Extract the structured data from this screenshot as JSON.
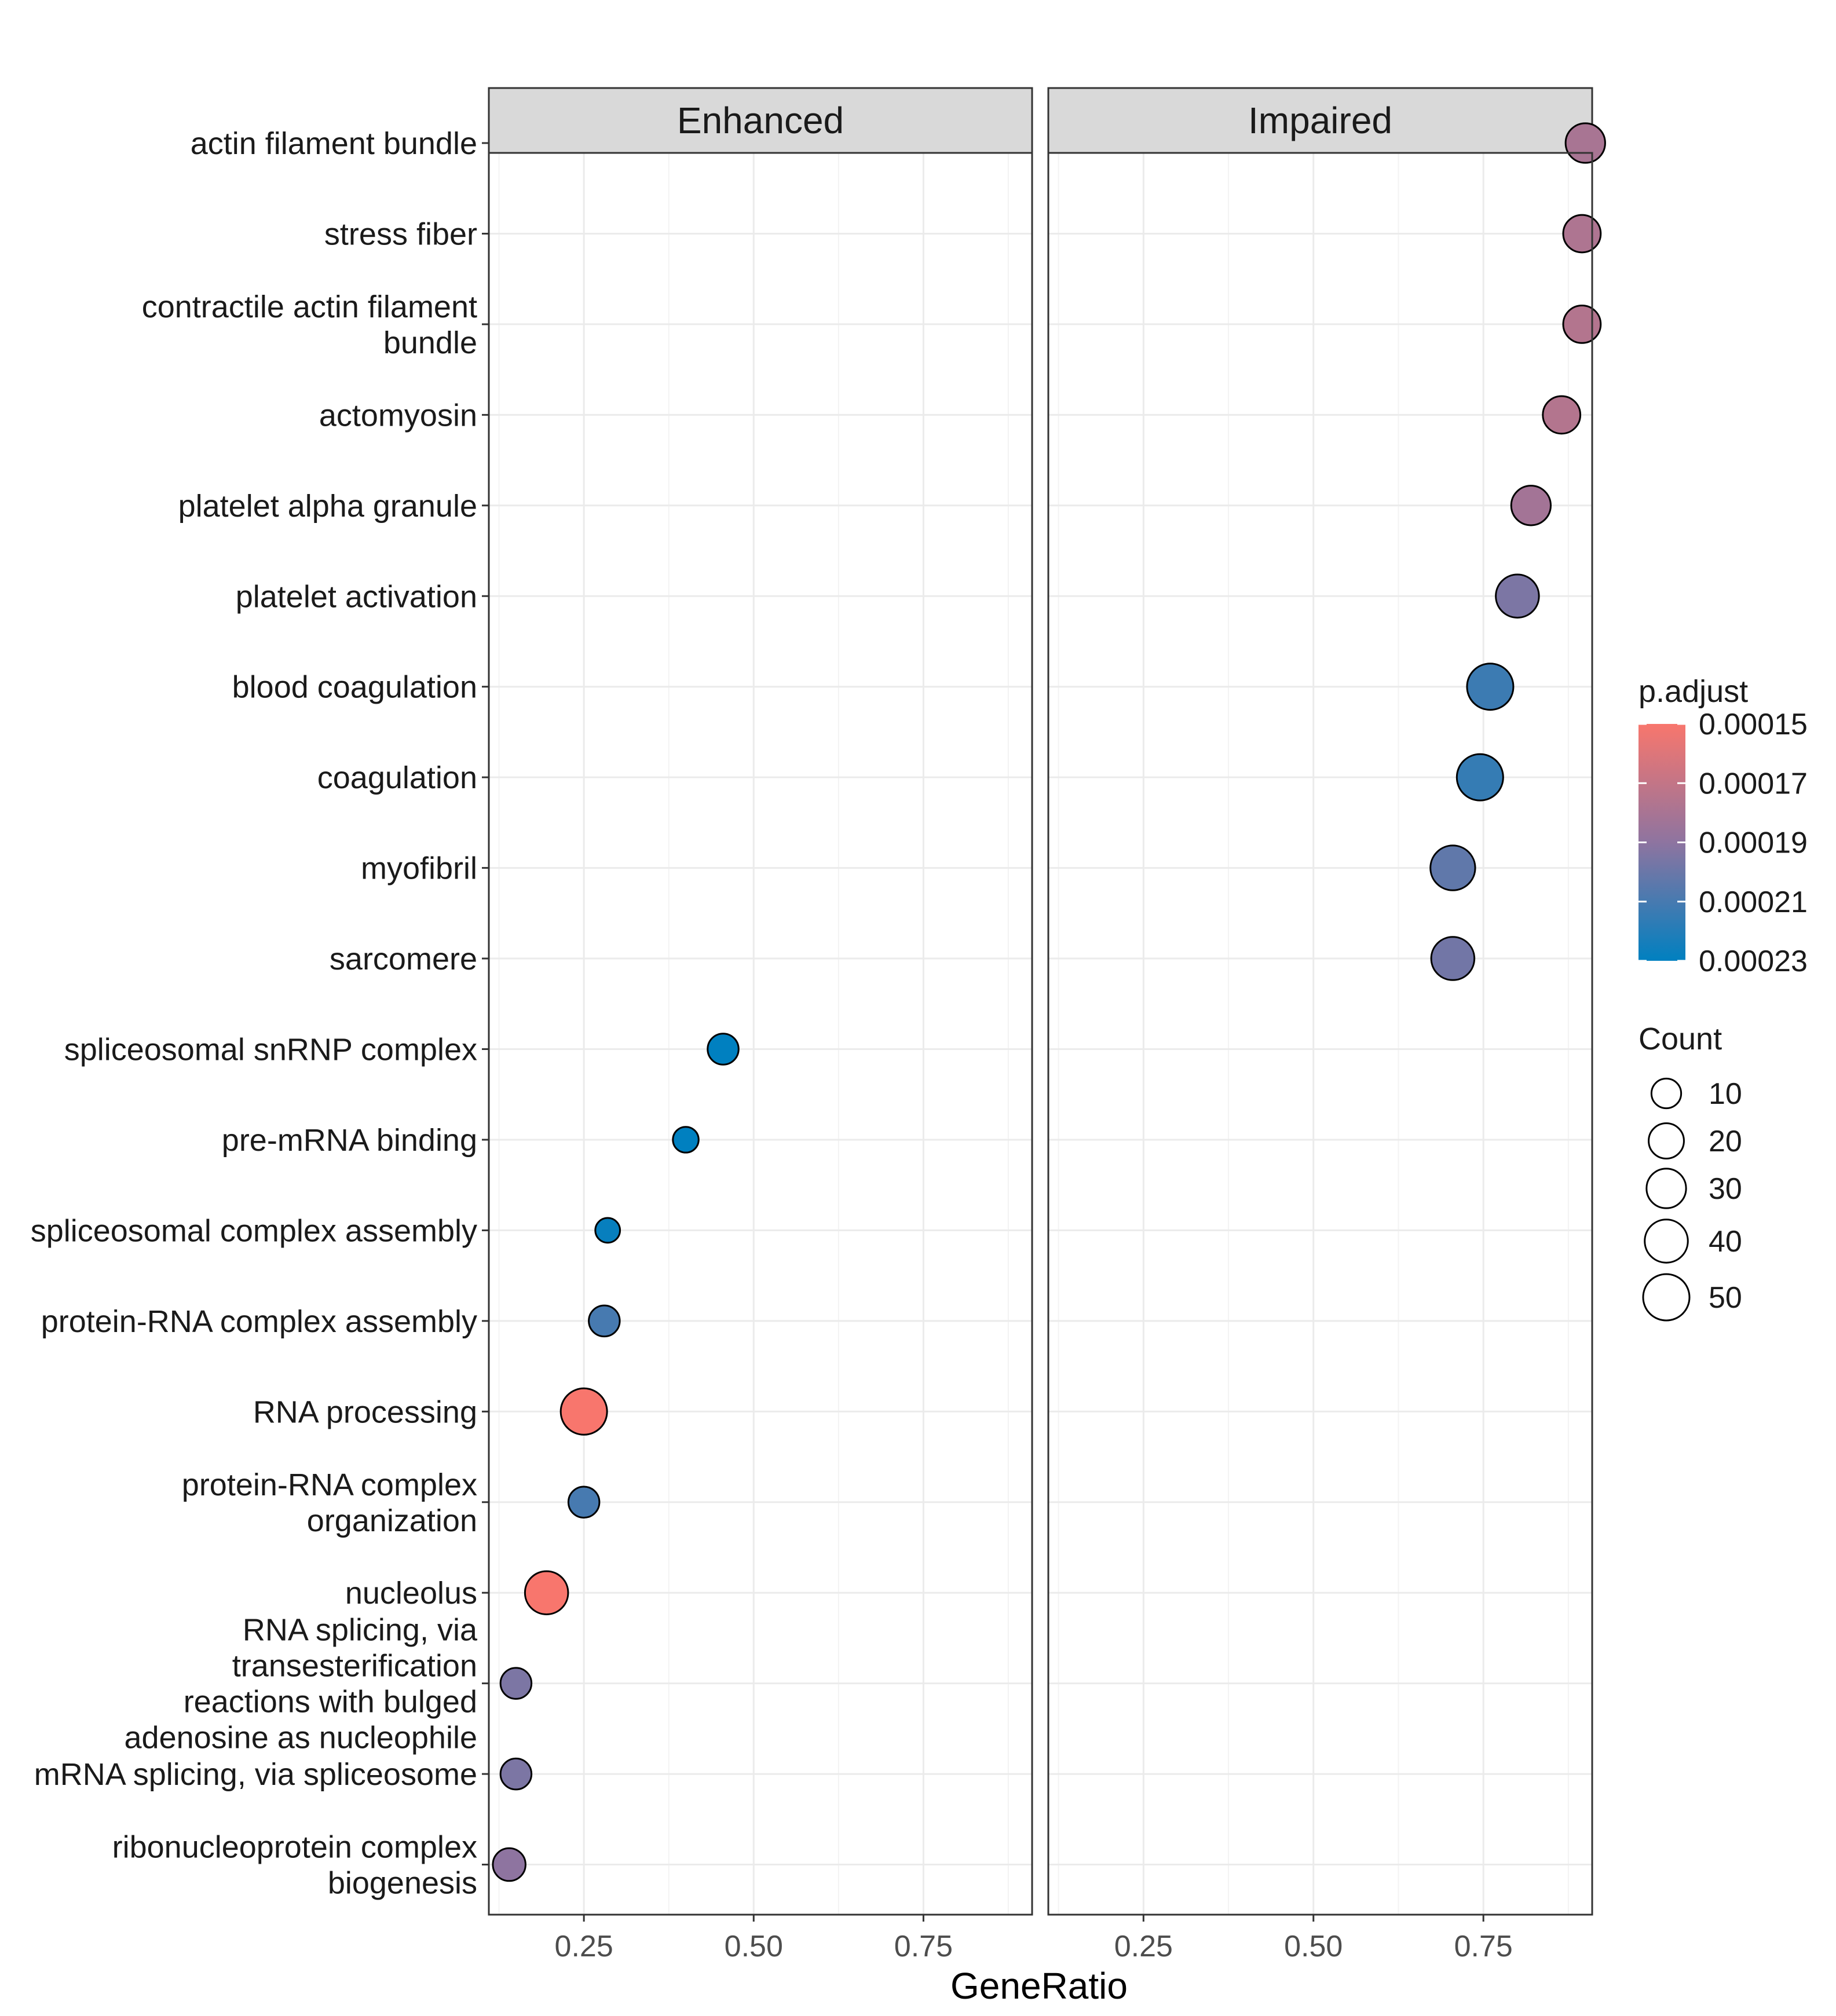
{
  "chart_data": {
    "type": "scatter",
    "subtype": "dot-plot (faceted)",
    "xlabel": "GeneRatio",
    "ylabel": "",
    "xlim": [
      0.11,
      0.91
    ],
    "x_ticks": [
      {
        "value": 0.25,
        "label": "0.25"
      },
      {
        "value": 0.5,
        "label": "0.50"
      },
      {
        "value": 0.75,
        "label": "0.75"
      }
    ],
    "grid": true,
    "facets": [
      "Enhanced",
      "Impaired"
    ],
    "categories": [
      [
        "actin filament bundle"
      ],
      [
        "stress fiber"
      ],
      [
        "contractile actin filament",
        "bundle"
      ],
      [
        "actomyosin"
      ],
      [
        "platelet alpha granule"
      ],
      [
        "platelet activation"
      ],
      [
        "blood coagulation"
      ],
      [
        "coagulation"
      ],
      [
        "myofibril"
      ],
      [
        "sarcomere"
      ],
      [
        "spliceosomal snRNP complex"
      ],
      [
        "pre-mRNA binding"
      ],
      [
        "spliceosomal complex assembly"
      ],
      [
        "protein-RNA complex assembly"
      ],
      [
        "RNA processing"
      ],
      [
        "protein-RNA complex",
        "organization"
      ],
      [
        "nucleolus"
      ],
      [
        "RNA splicing, via",
        "transesterification",
        "reactions with bulged",
        "adenosine as nucleophile"
      ],
      [
        "mRNA splicing, via spliceosome"
      ],
      [
        "ribonucleoprotein complex",
        "biogenesis"
      ]
    ],
    "points": [
      {
        "facet": "Impaired",
        "category": 0,
        "x": 0.9,
        "count": 30,
        "p_adjust": 0.00018
      },
      {
        "facet": "Impaired",
        "category": 1,
        "x": 0.895,
        "count": 25,
        "p_adjust": 0.000178
      },
      {
        "facet": "Impaired",
        "category": 2,
        "x": 0.895,
        "count": 25,
        "p_adjust": 0.000176
      },
      {
        "facet": "Impaired",
        "category": 3,
        "x": 0.865,
        "count": 25,
        "p_adjust": 0.000176
      },
      {
        "facet": "Impaired",
        "category": 4,
        "x": 0.82,
        "count": 30,
        "p_adjust": 0.000182
      },
      {
        "facet": "Impaired",
        "category": 5,
        "x": 0.8,
        "count": 40,
        "p_adjust": 0.000195
      },
      {
        "facet": "Impaired",
        "category": 6,
        "x": 0.76,
        "count": 50,
        "p_adjust": 0.000213
      },
      {
        "facet": "Impaired",
        "category": 7,
        "x": 0.745,
        "count": 50,
        "p_adjust": 0.000215
      },
      {
        "facet": "Impaired",
        "category": 8,
        "x": 0.705,
        "count": 45,
        "p_adjust": 0.000203
      },
      {
        "facet": "Impaired",
        "category": 9,
        "x": 0.705,
        "count": 40,
        "p_adjust": 0.000198
      },
      {
        "facet": "Enhanced",
        "category": 10,
        "x": 0.455,
        "count": 12,
        "p_adjust": 0.00023
      },
      {
        "facet": "Enhanced",
        "category": 11,
        "x": 0.4,
        "count": 5,
        "p_adjust": 0.00023
      },
      {
        "facet": "Enhanced",
        "category": 12,
        "x": 0.285,
        "count": 4,
        "p_adjust": 0.000228
      },
      {
        "facet": "Enhanced",
        "category": 13,
        "x": 0.28,
        "count": 12,
        "p_adjust": 0.00021
      },
      {
        "facet": "Enhanced",
        "category": 14,
        "x": 0.25,
        "count": 50,
        "p_adjust": 0.00015
      },
      {
        "facet": "Enhanced",
        "category": 15,
        "x": 0.25,
        "count": 12,
        "p_adjust": 0.00021
      },
      {
        "facet": "Enhanced",
        "category": 16,
        "x": 0.195,
        "count": 40,
        "p_adjust": 0.00015
      },
      {
        "facet": "Enhanced",
        "category": 17,
        "x": 0.15,
        "count": 12,
        "p_adjust": 0.000195
      },
      {
        "facet": "Enhanced",
        "category": 18,
        "x": 0.15,
        "count": 12,
        "p_adjust": 0.000195
      },
      {
        "facet": "Enhanced",
        "category": 19,
        "x": 0.14,
        "count": 15,
        "p_adjust": 0.00019
      }
    ],
    "color_legend": {
      "title": "p.adjust",
      "range": [
        0.00015,
        0.00023
      ],
      "breaks": [
        {
          "value": 0.00015,
          "label": "0.00015"
        },
        {
          "value": 0.00017,
          "label": "0.00017"
        },
        {
          "value": 0.00019,
          "label": "0.00019"
        },
        {
          "value": 0.00021,
          "label": "0.00021"
        },
        {
          "value": 0.00023,
          "label": "0.00023"
        }
      ],
      "low_color": "#F8766D",
      "mid_color": "#8E74A0",
      "high_color": "#0080C0"
    },
    "size_legend": {
      "title": "Count",
      "breaks": [
        {
          "value": 10,
          "label": "10"
        },
        {
          "value": 20,
          "label": "20"
        },
        {
          "value": 30,
          "label": "30"
        },
        {
          "value": 40,
          "label": "40"
        },
        {
          "value": 50,
          "label": "50"
        }
      ]
    }
  }
}
